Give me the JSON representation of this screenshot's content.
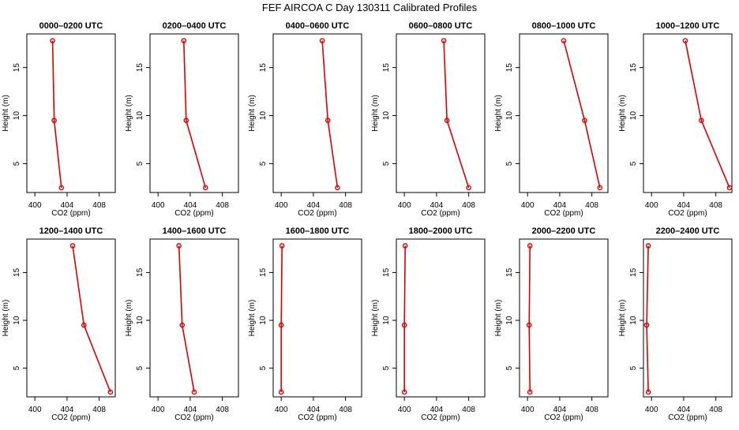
{
  "figure_title": "FEF AIRCOA C  Day 130311  Calibrated Profiles",
  "colors": {
    "profile": "#dd0000",
    "axis": "#000000",
    "background": "#ffffff"
  },
  "chart_data": [
    {
      "type": "line",
      "title": "0000–0200 UTC",
      "xlabel": "CO2 (ppm)",
      "ylabel": "Height (m)",
      "xlim": [
        399,
        410
      ],
      "ylim": [
        2,
        18.5
      ],
      "xticks": [
        400,
        404,
        408
      ],
      "yticks": [
        5,
        10,
        15
      ],
      "series": [
        {
          "name": "profile",
          "x": [
            403.3,
            402.4,
            402.2
          ],
          "y": [
            2.5,
            9.5,
            17.8
          ]
        }
      ]
    },
    {
      "type": "line",
      "title": "0200–0400 UTC",
      "xlabel": "CO2 (ppm)",
      "ylabel": "Height (m)",
      "xlim": [
        399,
        410
      ],
      "ylim": [
        2,
        18.5
      ],
      "xticks": [
        400,
        404,
        408
      ],
      "yticks": [
        5,
        10,
        15
      ],
      "series": [
        {
          "name": "profile",
          "x": [
            405.9,
            403.5,
            403.2
          ],
          "y": [
            2.5,
            9.5,
            17.8
          ]
        }
      ]
    },
    {
      "type": "line",
      "title": "0400–0600 UTC",
      "xlabel": "CO2 (ppm)",
      "ylabel": "Height (m)",
      "xlim": [
        399,
        410
      ],
      "ylim": [
        2,
        18.5
      ],
      "xticks": [
        400,
        404,
        408
      ],
      "yticks": [
        5,
        10,
        15
      ],
      "series": [
        {
          "name": "profile",
          "x": [
            407.0,
            405.8,
            405.1
          ],
          "y": [
            2.5,
            9.5,
            17.8
          ]
        }
      ]
    },
    {
      "type": "line",
      "title": "0600–0800 UTC",
      "xlabel": "CO2 (ppm)",
      "ylabel": "Height (m)",
      "xlim": [
        399,
        410
      ],
      "ylim": [
        2,
        18.5
      ],
      "xticks": [
        400,
        404,
        408
      ],
      "yticks": [
        5,
        10,
        15
      ],
      "series": [
        {
          "name": "profile",
          "x": [
            408.0,
            405.3,
            404.9
          ],
          "y": [
            2.5,
            9.5,
            17.8
          ]
        }
      ]
    },
    {
      "type": "line",
      "title": "0800–1000 UTC",
      "xlabel": "CO2 (ppm)",
      "ylabel": "Height (m)",
      "xlim": [
        399,
        410
      ],
      "ylim": [
        2,
        18.5
      ],
      "xticks": [
        400,
        404,
        408
      ],
      "yticks": [
        5,
        10,
        15
      ],
      "series": [
        {
          "name": "profile",
          "x": [
            409.0,
            407.1,
            404.5
          ],
          "y": [
            2.5,
            9.5,
            17.8
          ]
        }
      ]
    },
    {
      "type": "line",
      "title": "1000–1200 UTC",
      "xlabel": "CO2 (ppm)",
      "ylabel": "Height (m)",
      "xlim": [
        399,
        410
      ],
      "ylim": [
        2,
        18.5
      ],
      "xticks": [
        400,
        404,
        408
      ],
      "yticks": [
        5,
        10,
        15
      ],
      "series": [
        {
          "name": "profile",
          "x": [
            409.7,
            406.2,
            404.2
          ],
          "y": [
            2.5,
            9.5,
            17.8
          ]
        }
      ]
    },
    {
      "type": "line",
      "title": "1200–1400 UTC",
      "xlabel": "CO2 (ppm)",
      "ylabel": "Height (m)",
      "xlim": [
        399,
        410
      ],
      "ylim": [
        2,
        18.5
      ],
      "xticks": [
        400,
        404,
        408
      ],
      "yticks": [
        5,
        10,
        15
      ],
      "series": [
        {
          "name": "profile",
          "x": [
            409.4,
            406.1,
            404.7
          ],
          "y": [
            2.5,
            9.5,
            17.8
          ]
        }
      ]
    },
    {
      "type": "line",
      "title": "1400–1600 UTC",
      "xlabel": "CO2 (ppm)",
      "ylabel": "Height (m)",
      "xlim": [
        399,
        410
      ],
      "ylim": [
        2,
        18.5
      ],
      "xticks": [
        400,
        404,
        408
      ],
      "yticks": [
        5,
        10,
        15
      ],
      "series": [
        {
          "name": "profile",
          "x": [
            404.5,
            403.0,
            402.6
          ],
          "y": [
            2.5,
            9.5,
            17.8
          ]
        }
      ]
    },
    {
      "type": "line",
      "title": "1600–1800 UTC",
      "xlabel": "CO2 (ppm)",
      "ylabel": "Height (m)",
      "xlim": [
        399,
        410
      ],
      "ylim": [
        2,
        18.5
      ],
      "xticks": [
        400,
        404,
        408
      ],
      "yticks": [
        5,
        10,
        15
      ],
      "series": [
        {
          "name": "profile",
          "x": [
            400.0,
            400.0,
            400.1
          ],
          "y": [
            2.5,
            9.5,
            17.8
          ]
        }
      ]
    },
    {
      "type": "line",
      "title": "1800–2000 UTC",
      "xlabel": "CO2 (ppm)",
      "ylabel": "Height (m)",
      "xlim": [
        399,
        410
      ],
      "ylim": [
        2,
        18.5
      ],
      "xticks": [
        400,
        404,
        408
      ],
      "yticks": [
        5,
        10,
        15
      ],
      "series": [
        {
          "name": "profile",
          "x": [
            400.0,
            400.0,
            400.1
          ],
          "y": [
            2.5,
            9.5,
            17.8
          ]
        }
      ]
    },
    {
      "type": "line",
      "title": "2000–2200 UTC",
      "xlabel": "CO2 (ppm)",
      "ylabel": "Height (m)",
      "xlim": [
        399,
        410
      ],
      "ylim": [
        2,
        18.5
      ],
      "xticks": [
        400,
        404,
        408
      ],
      "yticks": [
        5,
        10,
        15
      ],
      "series": [
        {
          "name": "profile",
          "x": [
            400.3,
            400.2,
            400.3
          ],
          "y": [
            2.5,
            9.5,
            17.8
          ]
        }
      ]
    },
    {
      "type": "line",
      "title": "2200–2400 UTC",
      "xlabel": "CO2 (ppm)",
      "ylabel": "Height (m)",
      "xlim": [
        399,
        410
      ],
      "ylim": [
        2,
        18.5
      ],
      "xticks": [
        400,
        404,
        408
      ],
      "yticks": [
        5,
        10,
        15
      ],
      "series": [
        {
          "name": "profile",
          "x": [
            399.6,
            399.4,
            399.6
          ],
          "y": [
            2.5,
            9.5,
            17.8
          ]
        }
      ]
    }
  ]
}
